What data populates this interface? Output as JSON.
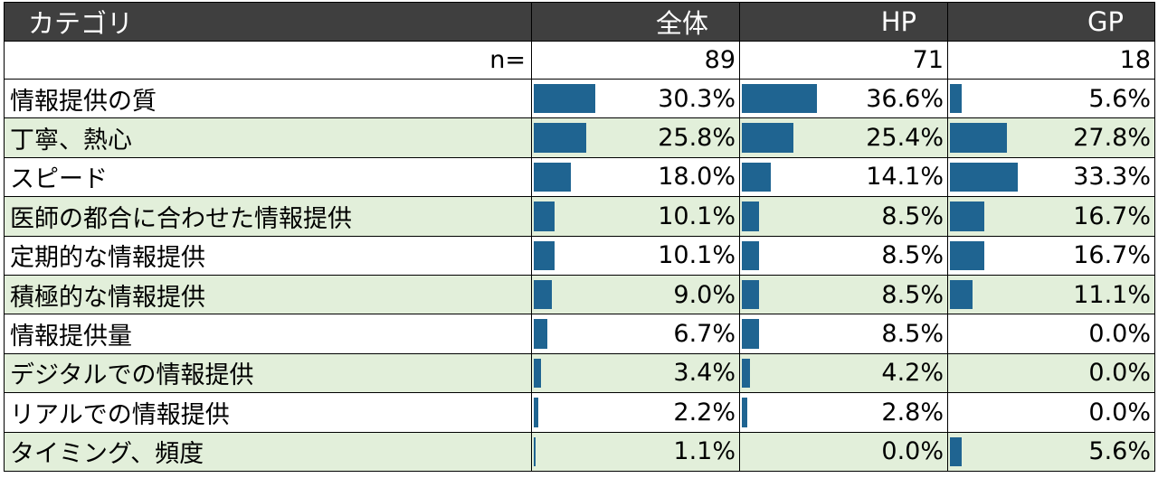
{
  "header": {
    "category": "カテゴリ",
    "columns": [
      "全体",
      "HP",
      "GP"
    ]
  },
  "n_row": {
    "label": "n=",
    "values": [
      "89",
      "71",
      "18"
    ]
  },
  "chart_data": {
    "type": "table",
    "columns": [
      "全体",
      "HP",
      "GP"
    ],
    "n": [
      89,
      71,
      18
    ],
    "bar_max_percent": 100,
    "bar_color": "#1f6491",
    "rows": [
      {
        "category": "情報提供の質",
        "values": [
          30.3,
          36.6,
          5.6
        ],
        "labels": [
          "30.3%",
          "36.6%",
          "5.6%"
        ]
      },
      {
        "category": "丁寧、熱心",
        "values": [
          25.8,
          25.4,
          27.8
        ],
        "labels": [
          "25.8%",
          "25.4%",
          "27.8%"
        ]
      },
      {
        "category": "スピード",
        "values": [
          18.0,
          14.1,
          33.3
        ],
        "labels": [
          "18.0%",
          "14.1%",
          "33.3%"
        ]
      },
      {
        "category": "医師の都合に合わせた情報提供",
        "values": [
          10.1,
          8.5,
          16.7
        ],
        "labels": [
          "10.1%",
          "8.5%",
          "16.7%"
        ]
      },
      {
        "category": "定期的な情報提供",
        "values": [
          10.1,
          8.5,
          16.7
        ],
        "labels": [
          "10.1%",
          "8.5%",
          "16.7%"
        ]
      },
      {
        "category": "積極的な情報提供",
        "values": [
          9.0,
          8.5,
          11.1
        ],
        "labels": [
          "9.0%",
          "8.5%",
          "11.1%"
        ]
      },
      {
        "category": "情報提供量",
        "values": [
          6.7,
          8.5,
          0.0
        ],
        "labels": [
          "6.7%",
          "8.5%",
          "0.0%"
        ]
      },
      {
        "category": "デジタルでの情報提供",
        "values": [
          3.4,
          4.2,
          0.0
        ],
        "labels": [
          "3.4%",
          "4.2%",
          "0.0%"
        ]
      },
      {
        "category": "リアルでの情報提供",
        "values": [
          2.2,
          2.8,
          0.0
        ],
        "labels": [
          "2.2%",
          "2.8%",
          "0.0%"
        ]
      },
      {
        "category": "タイミング、頻度",
        "values": [
          1.1,
          0.0,
          5.6
        ],
        "labels": [
          "1.1%",
          "0.0%",
          "5.6%"
        ]
      }
    ]
  }
}
